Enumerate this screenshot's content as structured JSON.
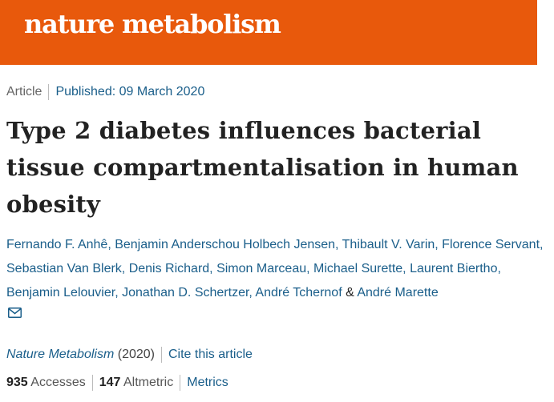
{
  "header": {
    "brand": "nature metabolism",
    "bg_color": "#e8590c"
  },
  "article": {
    "type": "Article",
    "published": "Published: 09 March 2020",
    "title": "Type 2 diabetes influences bacterial tissue compartmentalisation in human obesity"
  },
  "authors": [
    "Fernando F. Anhê",
    "Benjamin Anderschou Holbech Jensen",
    "Thibault V. Varin",
    "Florence Servant",
    "Sebastian Van Blerk",
    "Denis Richard",
    "Simon Marceau",
    "Michael Surette",
    "Laurent Biertho",
    "Benjamin Lelouvier",
    "Jonathan D. Schertzer",
    "André Tchernof",
    "André Marette"
  ],
  "authors_conjunction": "&",
  "email_icon": "envelope-icon",
  "citation": {
    "journal": "Nature Metabolism",
    "year": "(2020)",
    "cite_label": "Cite this article"
  },
  "stats": {
    "accesses_value": "935",
    "accesses_label": "Accesses",
    "altmetric_value": "147",
    "altmetric_label": "Altmetric",
    "metrics_label": "Metrics"
  },
  "colors": {
    "link": "#1a5e8a",
    "text": "#222222"
  }
}
